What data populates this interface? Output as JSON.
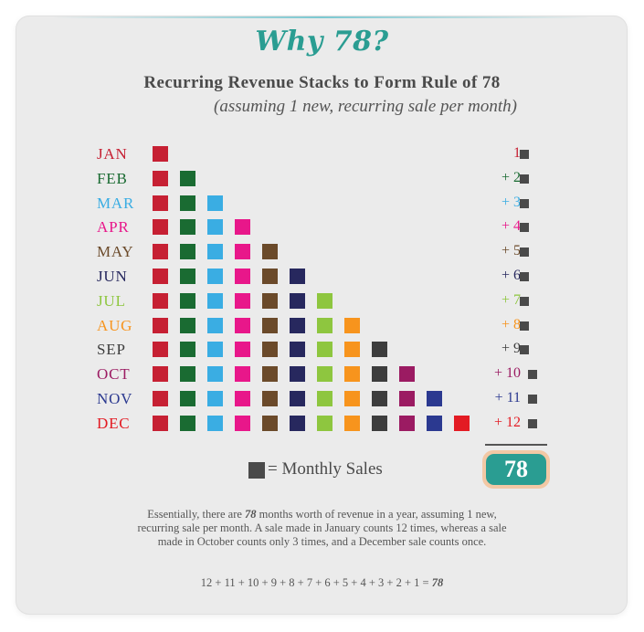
{
  "title": "Why 78?",
  "subtitle": "Recurring Revenue Stacks to Form Rule of 78",
  "subtitle_note": "(assuming 1 new, recurring sale per month)",
  "months": [
    {
      "label": "JAN",
      "count": "1",
      "color": "#c62033"
    },
    {
      "label": "FEB",
      "count": "+ 2",
      "color": "#1a6b32"
    },
    {
      "label": "MAR",
      "count": "+ 3",
      "color": "#3aade3"
    },
    {
      "label": "APR",
      "count": "+ 4",
      "color": "#e8178a"
    },
    {
      "label": "MAY",
      "count": "+ 5",
      "color": "#6b4a2a"
    },
    {
      "label": "JUN",
      "count": "+ 6",
      "color": "#27285e"
    },
    {
      "label": "JUL",
      "count": "+ 7",
      "color": "#8ec63f"
    },
    {
      "label": "AUG",
      "count": "+ 8",
      "color": "#f7941d"
    },
    {
      "label": "SEP",
      "count": "+ 9",
      "color": "#3d3d3d"
    },
    {
      "label": "OCT",
      "count": "+ 10",
      "color": "#9b1b62"
    },
    {
      "label": "NOV",
      "count": "+ 11",
      "color": "#2b3990"
    },
    {
      "label": "DEC",
      "count": "+ 12",
      "color": "#e31b23"
    }
  ],
  "total": "78",
  "legend": {
    "text": "= Monthly Sales",
    "icon": "square-icon"
  },
  "explanation": {
    "part1": "Essentially, there are ",
    "number": "78",
    "part2": " months worth of revenue in a year, assuming 1 new, recurring sale per month. A sale made in January counts 12 times, whereas a sale made in October counts only 3 times, and a December sale counts once."
  },
  "equation": {
    "expr": "12 + 11 + 10 + 9 + 8 + 7 + 6 + 5 + 4 + 3 + 2 + 1 = ",
    "result": "78"
  }
}
